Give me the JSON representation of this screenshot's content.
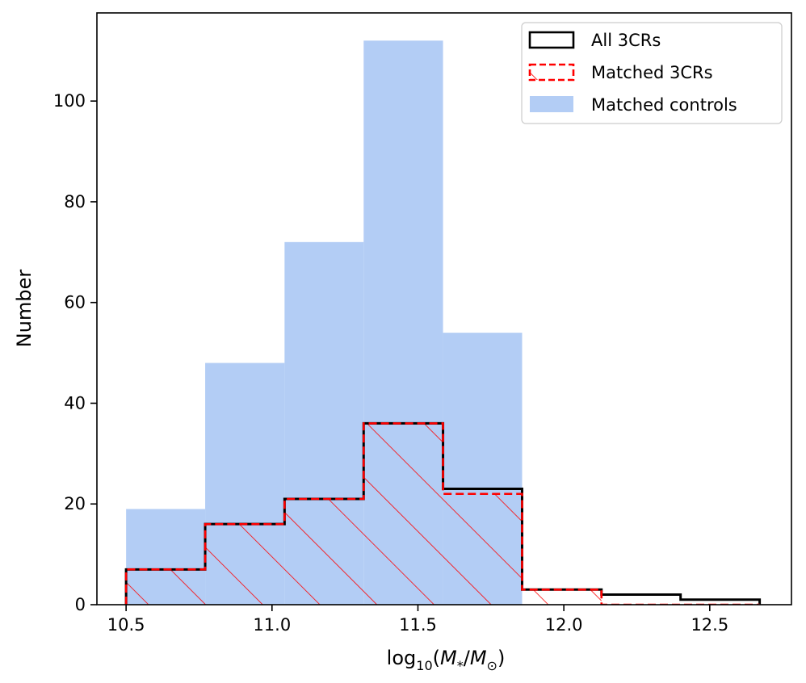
{
  "chart_data": {
    "type": "bar",
    "subtype": "histogram",
    "xlabel": "log10(M*/M☉)",
    "xlabel_parts": {
      "base": "log",
      "sub": "10",
      "open": "(",
      "num": "M",
      "num_sub": "*",
      "slash": "/",
      "den": "M",
      "den_sub": "⊙",
      "close": ")"
    },
    "ylabel": "Number",
    "xlim": [
      10.4,
      12.78
    ],
    "ylim": [
      0,
      117.5
    ],
    "xticks": [
      10.5,
      11.0,
      11.5,
      12.0,
      12.5
    ],
    "xtick_labels": [
      "10.5",
      "11.0",
      "11.5",
      "12.0",
      "12.5"
    ],
    "yticks": [
      0,
      20,
      40,
      60,
      80,
      100
    ],
    "ytick_labels": [
      "0",
      "20",
      "40",
      "60",
      "80",
      "100"
    ],
    "bin_edges": [
      10.5,
      10.771,
      11.043,
      11.314,
      11.586,
      11.857,
      12.129,
      12.4,
      12.671
    ],
    "series": [
      {
        "name": "Matched controls",
        "style": "filled",
        "color": "#b3cdf5",
        "values": [
          19,
          48,
          72,
          112,
          54,
          0,
          0,
          0
        ]
      },
      {
        "name": "All 3CRs",
        "style": "step-solid",
        "color": "#000000",
        "values": [
          7,
          16,
          21,
          36,
          23,
          3,
          2,
          1
        ]
      },
      {
        "name": "Matched 3CRs",
        "style": "step-dashed-hatched",
        "color": "#ff0000",
        "values": [
          7,
          16,
          21,
          36,
          22,
          3,
          0,
          0
        ]
      }
    ],
    "legend": {
      "position": "top-right",
      "entries": [
        "All 3CRs",
        "Matched 3CRs",
        "Matched controls"
      ]
    },
    "grid": false
  }
}
